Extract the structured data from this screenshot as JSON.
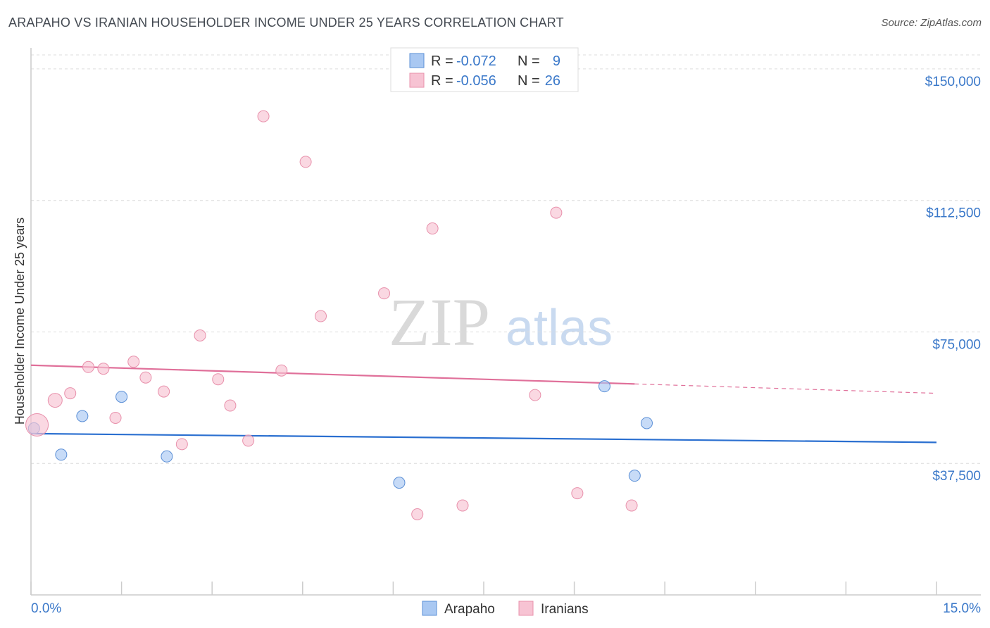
{
  "header": {
    "title": "ARAPAHO VS IRANIAN HOUSEHOLDER INCOME UNDER 25 YEARS CORRELATION CHART",
    "source": "Source: ZipAtlas.com"
  },
  "chart_data": {
    "type": "scatter",
    "title": "ARAPAHO VS IRANIAN HOUSEHOLDER INCOME UNDER 25 YEARS CORRELATION CHART",
    "ylabel": "Householder Income Under 25 years",
    "xlim": [
      0,
      15
    ],
    "ylim": [
      0,
      154000
    ],
    "x_tick_labels": [
      "0.0%",
      "15.0%"
    ],
    "y_ticks": [
      {
        "value": 37500,
        "label": "$37,500"
      },
      {
        "value": 75000,
        "label": "$75,000"
      },
      {
        "value": 112500,
        "label": "$112,500"
      },
      {
        "value": 150000,
        "label": "$150,000"
      }
    ],
    "grid": true,
    "legend_position": "top-center",
    "watermark": {
      "zip": "ZIP",
      "atlas": "atlas"
    },
    "series": [
      {
        "name": "Arapaho",
        "color": "#a9c8f2",
        "stroke": "#5b8fd6",
        "line_color": "#2a6fd0",
        "r_label": "R =",
        "r_value": "-0.072",
        "n_label": "N =",
        "n_value": "9",
        "trend": {
          "x0": 0,
          "y0": 46000,
          "x1": 15,
          "y1": 43500,
          "solid_until": 15
        },
        "points": [
          {
            "x": 0.05,
            "y": 47500,
            "size": 8
          },
          {
            "x": 0.5,
            "y": 40000,
            "size": 8
          },
          {
            "x": 0.85,
            "y": 51000,
            "size": 8
          },
          {
            "x": 1.5,
            "y": 56500,
            "size": 8
          },
          {
            "x": 2.25,
            "y": 39500,
            "size": 8
          },
          {
            "x": 6.1,
            "y": 32000,
            "size": 8
          },
          {
            "x": 9.5,
            "y": 59500,
            "size": 8
          },
          {
            "x": 10.0,
            "y": 34000,
            "size": 8
          },
          {
            "x": 10.2,
            "y": 49000,
            "size": 8
          }
        ]
      },
      {
        "name": "Iranians",
        "color": "#f7c3d3",
        "stroke": "#e890ab",
        "line_color": "#e0709a",
        "r_label": "R =",
        "r_value": "-0.056",
        "n_label": "N =",
        "n_value": "26",
        "trend": {
          "x0": 0,
          "y0": 65500,
          "x1": 15,
          "y1": 57500,
          "solid_until": 10.0
        },
        "points": [
          {
            "x": 0.1,
            "y": 48500,
            "size": 16
          },
          {
            "x": 0.4,
            "y": 55500,
            "size": 10
          },
          {
            "x": 0.65,
            "y": 57500,
            "size": 8
          },
          {
            "x": 0.95,
            "y": 65000,
            "size": 8
          },
          {
            "x": 1.2,
            "y": 64500,
            "size": 8
          },
          {
            "x": 1.4,
            "y": 50500,
            "size": 8
          },
          {
            "x": 1.7,
            "y": 66500,
            "size": 8
          },
          {
            "x": 1.9,
            "y": 62000,
            "size": 8
          },
          {
            "x": 2.2,
            "y": 58000,
            "size": 8
          },
          {
            "x": 2.5,
            "y": 43000,
            "size": 8
          },
          {
            "x": 2.8,
            "y": 74000,
            "size": 8
          },
          {
            "x": 3.1,
            "y": 61500,
            "size": 8
          },
          {
            "x": 3.3,
            "y": 54000,
            "size": 8
          },
          {
            "x": 3.6,
            "y": 44000,
            "size": 8
          },
          {
            "x": 3.85,
            "y": 136500,
            "size": 8
          },
          {
            "x": 4.15,
            "y": 64000,
            "size": 8
          },
          {
            "x": 4.55,
            "y": 123500,
            "size": 8
          },
          {
            "x": 4.8,
            "y": 79500,
            "size": 8
          },
          {
            "x": 5.85,
            "y": 86000,
            "size": 8
          },
          {
            "x": 6.4,
            "y": 23000,
            "size": 8
          },
          {
            "x": 6.65,
            "y": 104500,
            "size": 8
          },
          {
            "x": 7.15,
            "y": 25500,
            "size": 8
          },
          {
            "x": 8.35,
            "y": 57000,
            "size": 8
          },
          {
            "x": 8.7,
            "y": 109000,
            "size": 8
          },
          {
            "x": 9.05,
            "y": 29000,
            "size": 8
          },
          {
            "x": 9.95,
            "y": 25500,
            "size": 8
          }
        ]
      }
    ]
  }
}
